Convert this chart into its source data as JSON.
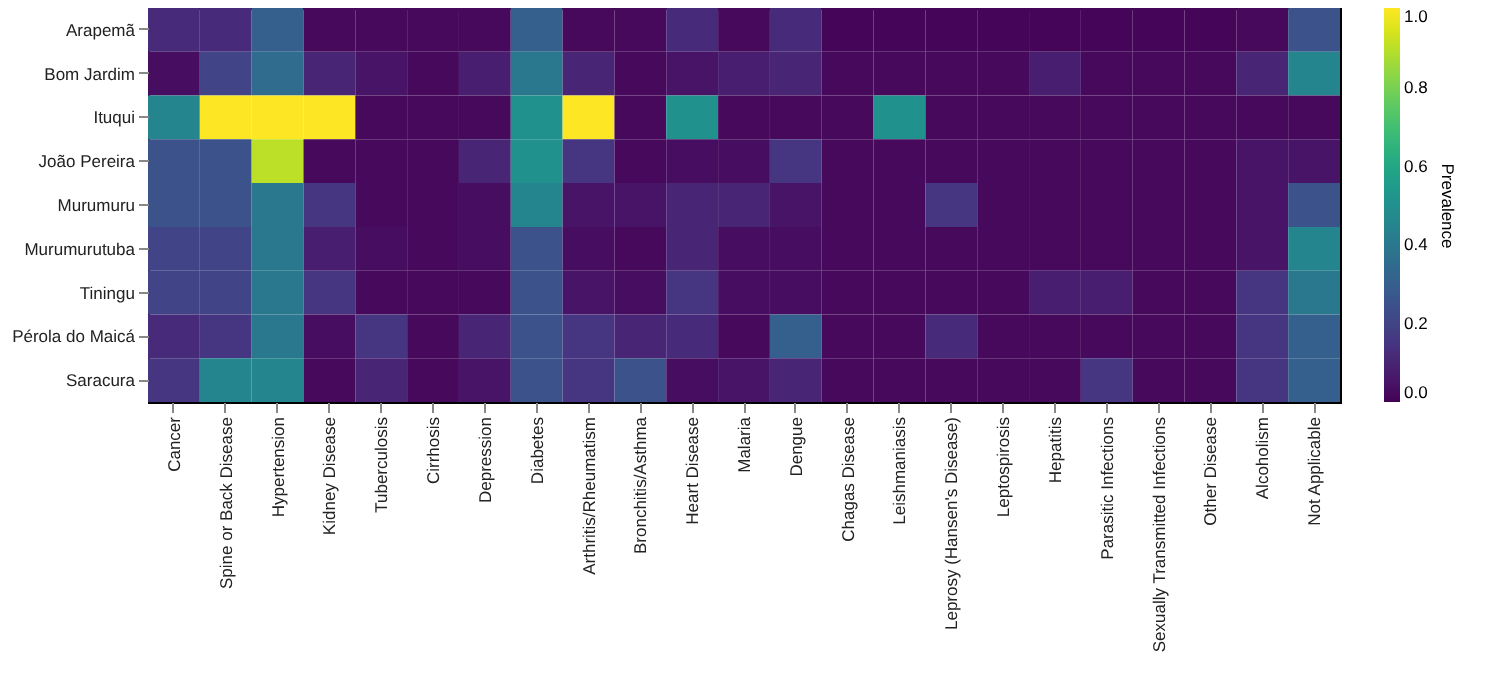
{
  "chart_data": {
    "type": "heatmap",
    "categories": [
      "Cancer",
      "Spine or Back Disease",
      "Hypertension",
      "Kidney Disease",
      "Tuberculosis",
      "Cirrhosis",
      "Depression",
      "Diabetes",
      "Arthritis/Rheumatism",
      "Bronchitis/Asthma",
      "Heart Disease",
      "Malaria",
      "Dengue",
      "Chagas Disease",
      "Leishmaniasis",
      "Leprosy (Hansen's Disease)",
      "Leptospirosis",
      "Hepatitis",
      "Parasitic Infections",
      "Sexually Transmitted Infections",
      "Other Disease",
      "Alcoholism",
      "Not Applicable"
    ],
    "y_categories": [
      "Arapemã",
      "Bom Jardim",
      "Ituqui",
      "João Pereira",
      "Murumuru",
      "Murumurutuba",
      "Tiningu",
      "Pérola do Maicá",
      "Saracura"
    ],
    "cells": [
      [
        0.12,
        0.12,
        0.3,
        0.02,
        0.02,
        0.02,
        0.02,
        0.3,
        0.02,
        0.02,
        0.12,
        0.02,
        0.12,
        0.01,
        0.01,
        0.01,
        0.01,
        0.01,
        0.01,
        0.01,
        0.01,
        0.02,
        0.25
      ],
      [
        0.03,
        0.2,
        0.35,
        0.1,
        0.05,
        0.02,
        0.08,
        0.4,
        0.1,
        0.02,
        0.05,
        0.08,
        0.1,
        0.02,
        0.02,
        0.02,
        0.02,
        0.08,
        0.02,
        0.02,
        0.02,
        0.1,
        0.45
      ],
      [
        0.45,
        1.0,
        1.0,
        1.0,
        0.02,
        0.02,
        0.02,
        0.5,
        1.0,
        0.02,
        0.5,
        0.02,
        0.02,
        0.02,
        0.5,
        0.02,
        0.02,
        0.02,
        0.02,
        0.02,
        0.02,
        0.02,
        0.02
      ],
      [
        0.25,
        0.25,
        0.9,
        0.02,
        0.02,
        0.02,
        0.1,
        0.5,
        0.15,
        0.02,
        0.03,
        0.03,
        0.15,
        0.02,
        0.02,
        0.02,
        0.02,
        0.02,
        0.02,
        0.02,
        0.02,
        0.05,
        0.05
      ],
      [
        0.25,
        0.25,
        0.4,
        0.15,
        0.02,
        0.02,
        0.03,
        0.45,
        0.05,
        0.05,
        0.1,
        0.1,
        0.05,
        0.02,
        0.02,
        0.15,
        0.02,
        0.02,
        0.02,
        0.02,
        0.02,
        0.05,
        0.25
      ],
      [
        0.2,
        0.2,
        0.4,
        0.08,
        0.03,
        0.02,
        0.03,
        0.25,
        0.03,
        0.02,
        0.1,
        0.03,
        0.03,
        0.02,
        0.02,
        0.02,
        0.02,
        0.02,
        0.02,
        0.02,
        0.02,
        0.05,
        0.45
      ],
      [
        0.2,
        0.2,
        0.4,
        0.15,
        0.02,
        0.02,
        0.02,
        0.25,
        0.05,
        0.03,
        0.15,
        0.03,
        0.03,
        0.02,
        0.02,
        0.02,
        0.02,
        0.08,
        0.08,
        0.02,
        0.02,
        0.15,
        0.4
      ],
      [
        0.12,
        0.15,
        0.4,
        0.03,
        0.15,
        0.02,
        0.1,
        0.25,
        0.15,
        0.1,
        0.12,
        0.02,
        0.3,
        0.02,
        0.02,
        0.12,
        0.02,
        0.02,
        0.02,
        0.02,
        0.02,
        0.15,
        0.3
      ],
      [
        0.15,
        0.45,
        0.45,
        0.02,
        0.1,
        0.02,
        0.05,
        0.25,
        0.15,
        0.25,
        0.03,
        0.05,
        0.1,
        0.02,
        0.02,
        0.02,
        0.02,
        0.02,
        0.15,
        0.02,
        0.02,
        0.15,
        0.3
      ]
    ],
    "clabel": "Prevalence",
    "clim": [
      0,
      1
    ],
    "cticks": [
      {
        "value": 0,
        "label": "0.0"
      },
      {
        "value": 0.2,
        "label": "0.2"
      },
      {
        "value": 0.4,
        "label": "0.4"
      },
      {
        "value": 0.6,
        "label": "0.6"
      },
      {
        "value": 0.8,
        "label": "0.8"
      },
      {
        "value": 1,
        "label": "1.0"
      }
    ]
  }
}
